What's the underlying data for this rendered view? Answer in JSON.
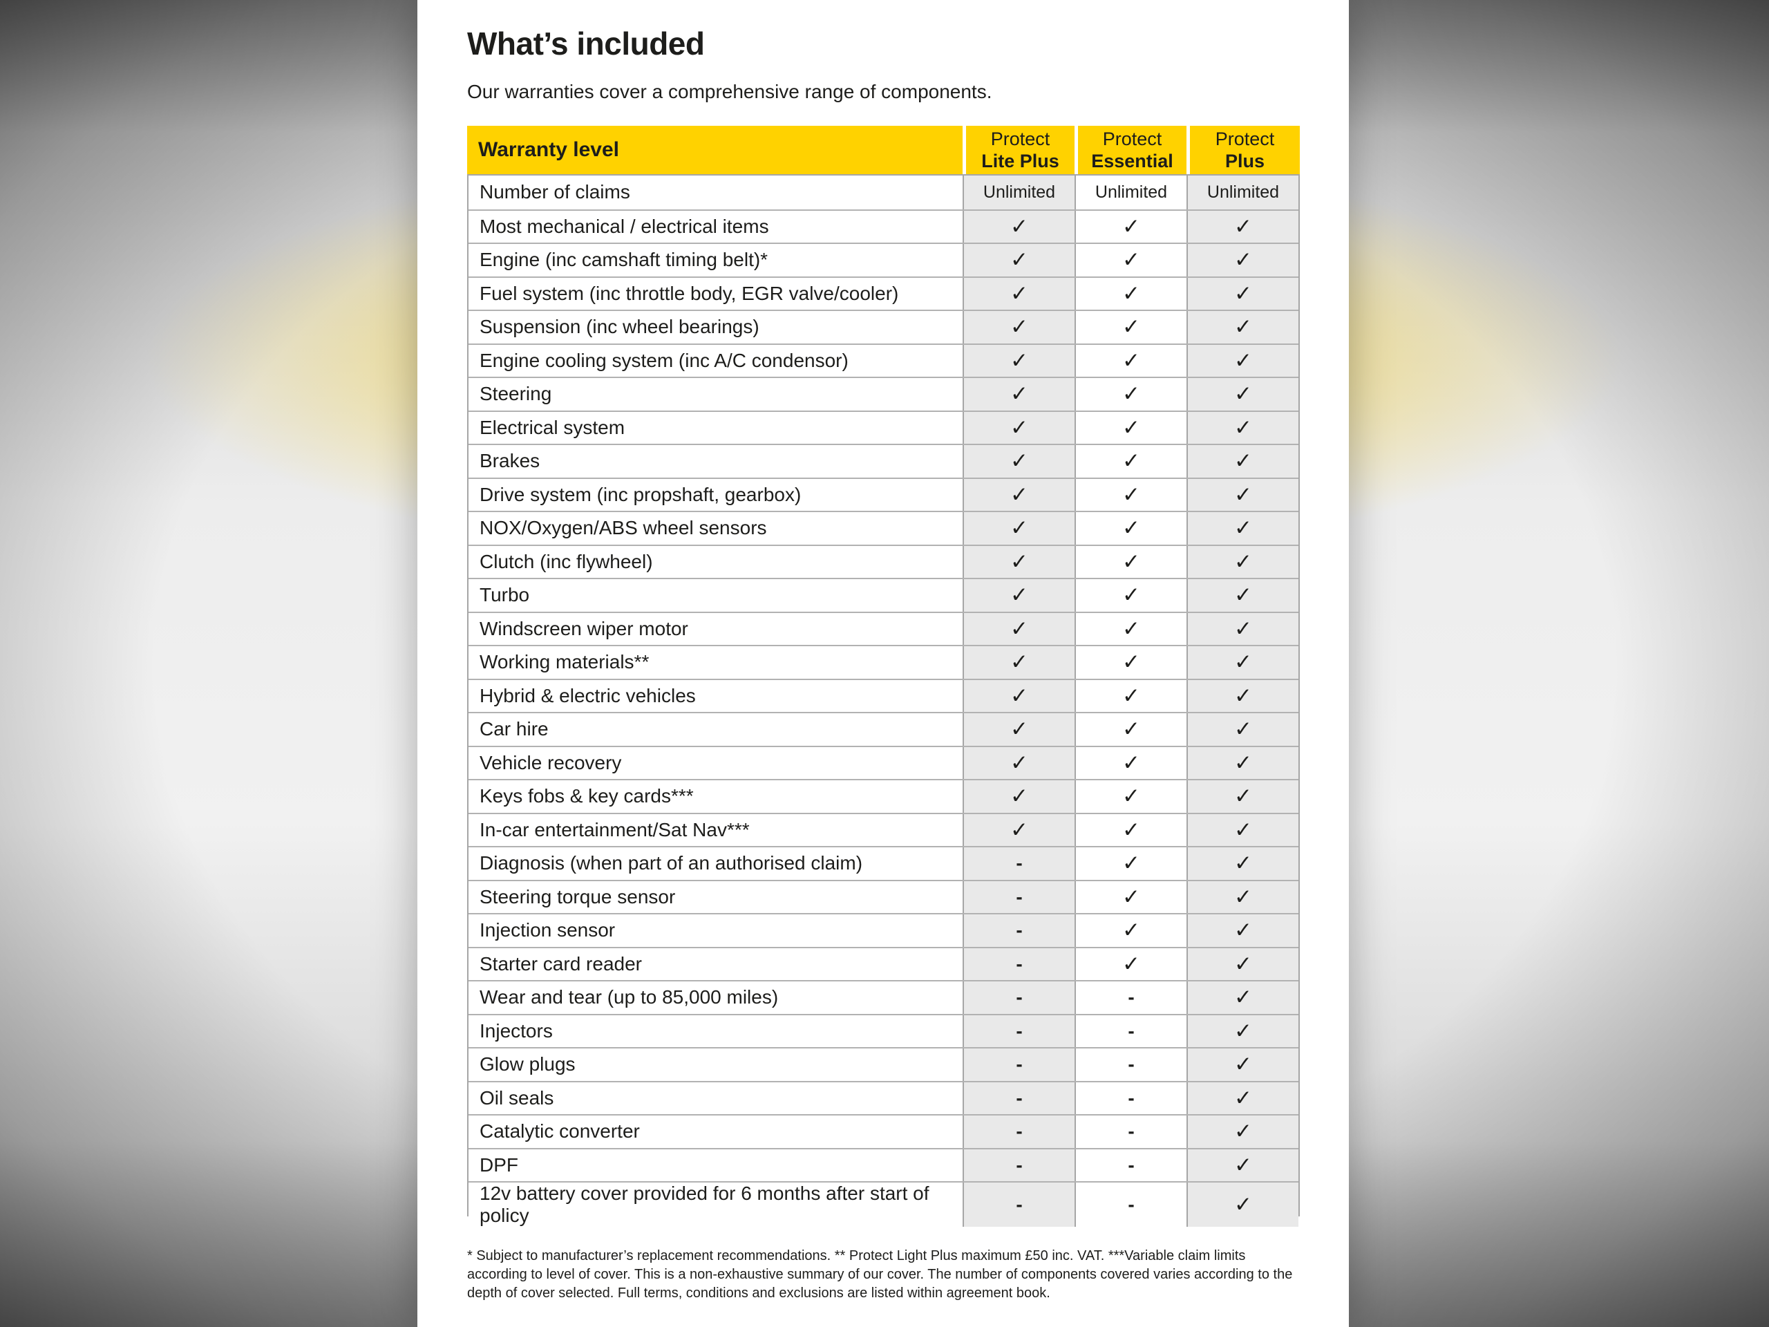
{
  "page": {
    "title": "What’s included",
    "subtitle": "Our warranties cover a comprehensive range of components.",
    "footnote": "* Subject to manufacturer’s replacement recommendations. ** Protect Light Plus maximum £50 inc. VAT. ***Variable claim limits according to level of cover. This is a non-exhaustive summary of our cover. The number of components covered varies according to the depth of cover selected. Full terms, conditions and exclusions are listed within agreement book."
  },
  "table": {
    "corner_label": "Warranty level",
    "columns": [
      {
        "line1": "Protect",
        "line2": "Lite Plus"
      },
      {
        "line1": "Protect",
        "line2": "Essential"
      },
      {
        "line1": "Protect",
        "line2": "Plus"
      }
    ],
    "rows": [
      {
        "label": "Number of claims",
        "values": [
          "Unlimited",
          "Unlimited",
          "Unlimited"
        ]
      },
      {
        "label": "Most mechanical / electrical items",
        "values": [
          "✓",
          "✓",
          "✓"
        ]
      },
      {
        "label": "Engine (inc camshaft timing belt)*",
        "values": [
          "✓",
          "✓",
          "✓"
        ]
      },
      {
        "label": "Fuel system (inc throttle body, EGR valve/cooler)",
        "values": [
          "✓",
          "✓",
          "✓"
        ]
      },
      {
        "label": "Suspension (inc wheel bearings)",
        "values": [
          "✓",
          "✓",
          "✓"
        ]
      },
      {
        "label": "Engine cooling system (inc A/C condensor)",
        "values": [
          "✓",
          "✓",
          "✓"
        ]
      },
      {
        "label": "Steering",
        "values": [
          "✓",
          "✓",
          "✓"
        ]
      },
      {
        "label": "Electrical system",
        "values": [
          "✓",
          "✓",
          "✓"
        ]
      },
      {
        "label": "Brakes",
        "values": [
          "✓",
          "✓",
          "✓"
        ]
      },
      {
        "label": "Drive system (inc propshaft, gearbox)",
        "values": [
          "✓",
          "✓",
          "✓"
        ]
      },
      {
        "label": "NOX/Oxygen/ABS wheel sensors",
        "values": [
          "✓",
          "✓",
          "✓"
        ]
      },
      {
        "label": "Clutch (inc flywheel)",
        "values": [
          "✓",
          "✓",
          "✓"
        ]
      },
      {
        "label": "Turbo",
        "values": [
          "✓",
          "✓",
          "✓"
        ]
      },
      {
        "label": "Windscreen wiper motor",
        "values": [
          "✓",
          "✓",
          "✓"
        ]
      },
      {
        "label": "Working materials**",
        "values": [
          "✓",
          "✓",
          "✓"
        ]
      },
      {
        "label": "Hybrid & electric vehicles",
        "values": [
          "✓",
          "✓",
          "✓"
        ]
      },
      {
        "label": "Car hire",
        "values": [
          "✓",
          "✓",
          "✓"
        ]
      },
      {
        "label": "Vehicle recovery",
        "values": [
          "✓",
          "✓",
          "✓"
        ]
      },
      {
        "label": "Keys fobs & key cards***",
        "values": [
          "✓",
          "✓",
          "✓"
        ]
      },
      {
        "label": "In-car entertainment/Sat Nav***",
        "values": [
          "✓",
          "✓",
          "✓"
        ]
      },
      {
        "label": "Diagnosis (when part of an authorised claim)",
        "values": [
          "-",
          "✓",
          "✓"
        ]
      },
      {
        "label": "Steering torque sensor",
        "values": [
          "-",
          "✓",
          "✓"
        ]
      },
      {
        "label": "Injection sensor",
        "values": [
          "-",
          "✓",
          "✓"
        ]
      },
      {
        "label": "Starter card reader",
        "values": [
          "-",
          "✓",
          "✓"
        ]
      },
      {
        "label": "Wear and tear (up to 85,000 miles)",
        "values": [
          "-",
          "-",
          "✓"
        ]
      },
      {
        "label": "Injectors",
        "values": [
          "-",
          "-",
          "✓"
        ]
      },
      {
        "label": "Glow plugs",
        "values": [
          "-",
          "-",
          "✓"
        ]
      },
      {
        "label": "Oil seals",
        "values": [
          "-",
          "-",
          "✓"
        ]
      },
      {
        "label": "Catalytic converter",
        "values": [
          "-",
          "-",
          "✓"
        ]
      },
      {
        "label": "DPF",
        "values": [
          "-",
          "-",
          "✓"
        ]
      },
      {
        "label": "12v battery cover provided for 6 months after start of policy",
        "values": [
          "-",
          "-",
          "✓"
        ]
      }
    ]
  },
  "colors": {
    "brand_yellow": "#FFD200",
    "cell_gray": "#e9e9e9",
    "border_gray": "#a6a6a6",
    "text_dark": "#1d1d1b"
  }
}
